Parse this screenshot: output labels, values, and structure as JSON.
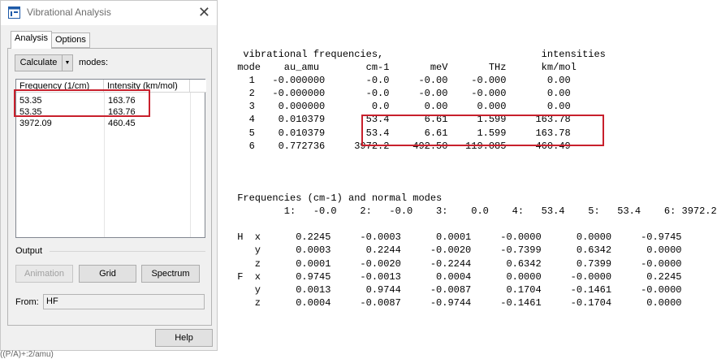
{
  "window": {
    "title": "Vibrational Analysis",
    "close_glyph": "✕",
    "tabs": [
      {
        "label": "Analysis",
        "active": true
      },
      {
        "label": "Options",
        "active": false
      }
    ]
  },
  "toolbar": {
    "calculate_label": "Calculate",
    "dropdown_glyph": "▼",
    "modes_label": "modes:"
  },
  "table": {
    "headers": [
      "Frequency (1/cm)",
      "Intensity (km/mol)"
    ],
    "rows": [
      [
        "53.35",
        "163.76"
      ],
      [
        "53.35",
        "163.76"
      ],
      [
        "3972.09",
        "460.45"
      ]
    ]
  },
  "output_section": {
    "label": "Output",
    "animation_label": "Animation",
    "grid_label": "Grid",
    "spectrum_label": "Spectrum",
    "from_label": "From:",
    "from_value": "HF"
  },
  "help_label": "Help",
  "background_text": "((P/A)+:2/amu)",
  "terminal_output": "  vibrational frequencies,                           intensities\n mode    au_amu        cm-1       meV       THz      km/mol\n   1   -0.000000       -0.0     -0.00    -0.000       0.00\n   2   -0.000000       -0.0     -0.00    -0.000       0.00\n   3    0.000000        0.0      0.00     0.000       0.00\n   4    0.010379       53.4      6.61     1.599     163.78\n   5    0.010379       53.4      6.61     1.599     163.78\n   6    0.772736     3972.2    492.50   119.085     460.49\n\n\n\n Frequencies (cm-1) and normal modes\n         1:   -0.0    2:   -0.0    3:    0.0    4:   53.4    5:   53.4    6: 3972.2\n\n H  x      0.2245     -0.0003      0.0001     -0.0000      0.0000     -0.9745\n    y      0.0003      0.2244     -0.0020     -0.7399      0.6342      0.0000\n    z      0.0001     -0.0020     -0.2244      0.6342      0.7399     -0.0000\n F  x      0.9745     -0.0013      0.0004      0.0000     -0.0000      0.2245\n    y      0.0013      0.9744     -0.0087      0.1704     -0.1461     -0.0000\n    z      0.0004     -0.0087     -0.9744     -0.1461     -0.1704      0.0000",
  "colors": {
    "highlight_box": "#c8202c",
    "window_bg": "#f0f0f0"
  },
  "icons": {
    "app_icon": "window-app-icon"
  }
}
